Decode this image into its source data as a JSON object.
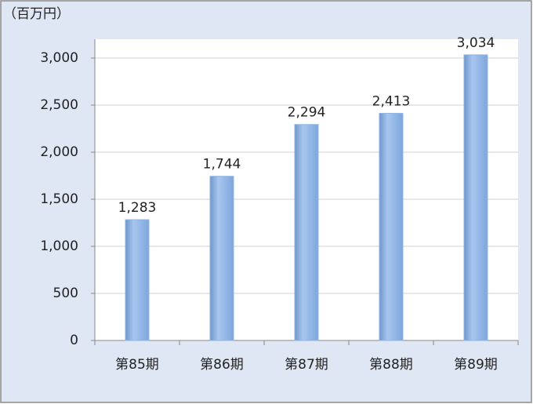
{
  "chart_data": {
    "type": "bar",
    "unit_label": "（百万円）",
    "categories": [
      "第85期",
      "第86期",
      "第87期",
      "第88期",
      "第89期"
    ],
    "values": [
      1283,
      1744,
      2294,
      2413,
      3034
    ],
    "value_labels": [
      "1,283",
      "1,744",
      "2,294",
      "2,413",
      "3,034"
    ],
    "color": "#8db4e2",
    "ylim": [
      0,
      3200
    ],
    "yticks": [
      0,
      500,
      {
        "value": 1000,
        "label": "1,000"
      },
      {
        "value": 1500,
        "label": "1,500"
      },
      {
        "value": 2000,
        "label": "2,000"
      },
      {
        "value": 2500,
        "label": "2,500"
      },
      {
        "value": 3000,
        "label": "3,000"
      }
    ],
    "grid": true
  }
}
